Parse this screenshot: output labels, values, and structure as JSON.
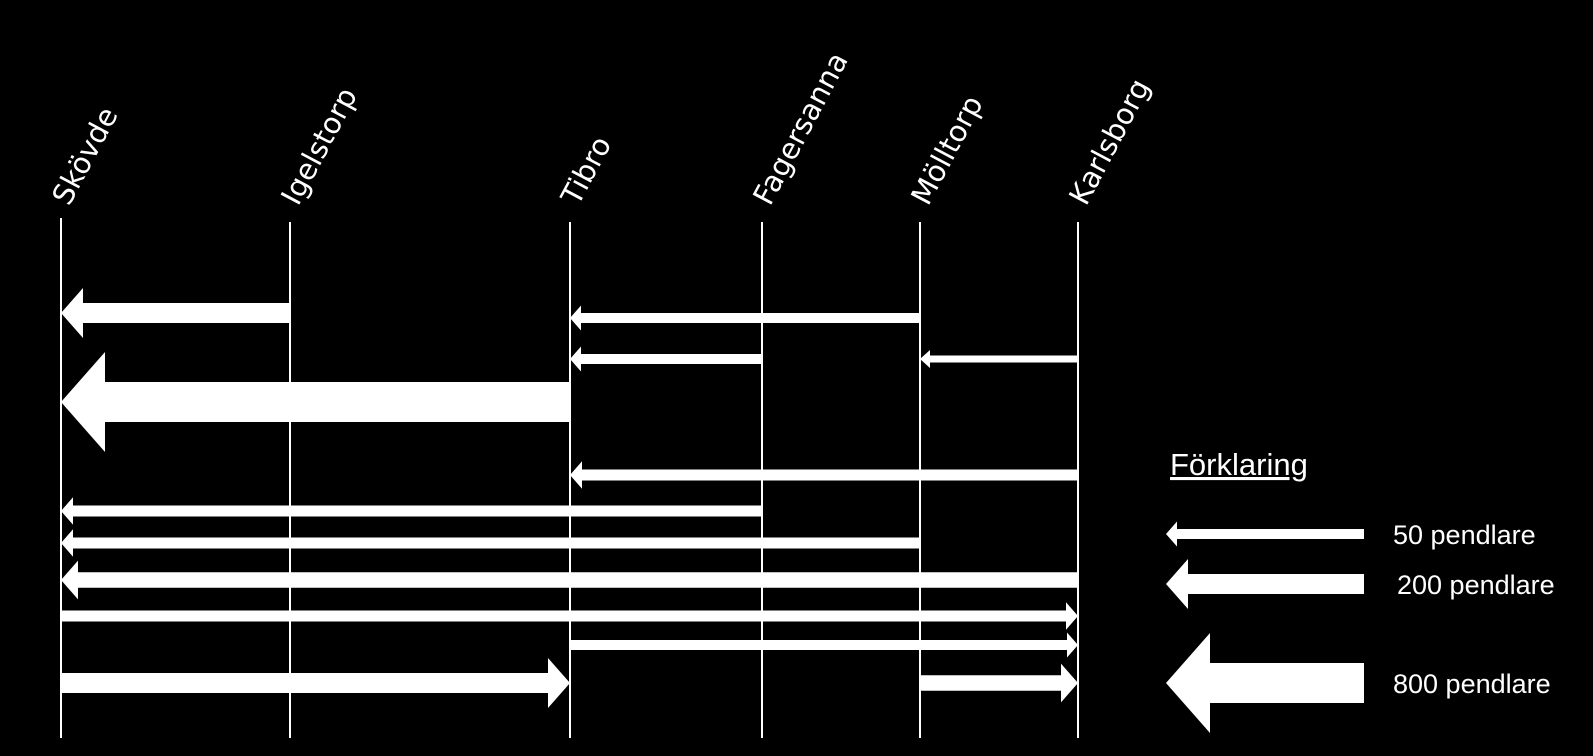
{
  "stations": [
    {
      "id": "skovde",
      "name": "Skövde"
    },
    {
      "id": "igelstorp",
      "name": "Igelstorp"
    },
    {
      "id": "tibro",
      "name": "Tibro"
    },
    {
      "id": "fagersanna",
      "name": "Fagersanna"
    },
    {
      "id": "molltorp",
      "name": "Mölltorp"
    },
    {
      "id": "karlsborg",
      "name": "Karlsborg"
    }
  ],
  "flows": [
    {
      "from": "igelstorp",
      "to": "skovde",
      "pendlare": 200
    },
    {
      "from": "molltorp",
      "to": "tibro",
      "pendlare": 50
    },
    {
      "from": "fagersanna",
      "to": "tibro",
      "pendlare": 50
    },
    {
      "from": "karlsborg",
      "to": "molltorp",
      "pendlare": 25
    },
    {
      "from": "tibro",
      "to": "skovde",
      "pendlare": 800
    },
    {
      "from": "karlsborg",
      "to": "tibro",
      "pendlare": 60
    },
    {
      "from": "fagersanna",
      "to": "skovde",
      "pendlare": 60
    },
    {
      "from": "molltorp",
      "to": "skovde",
      "pendlare": 60
    },
    {
      "from": "karlsborg",
      "to": "skovde",
      "pendlare": 120
    },
    {
      "from": "skovde",
      "to": "karlsborg",
      "pendlare": 60
    },
    {
      "from": "tibro",
      "to": "karlsborg",
      "pendlare": 50
    },
    {
      "from": "skovde",
      "to": "tibro",
      "pendlare": 200
    },
    {
      "from": "molltorp",
      "to": "karlsborg",
      "pendlare": 120
    }
  ],
  "legend": {
    "title": "Förklaring",
    "items": [
      {
        "label": "50 pendlare",
        "pendlare": 50
      },
      {
        "label": "200 pendlare",
        "pendlare": 200
      },
      {
        "label": "800 pendlare",
        "pendlare": 800
      }
    ]
  },
  "colors": {
    "background": "#000000",
    "foreground": "#ffffff"
  }
}
